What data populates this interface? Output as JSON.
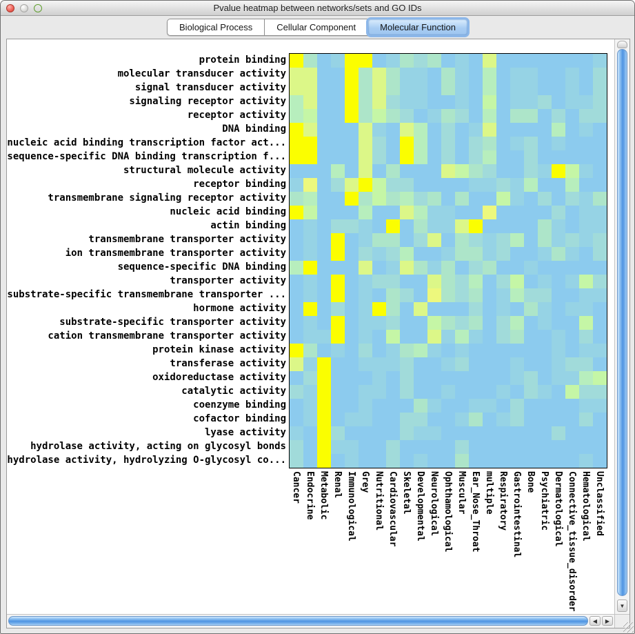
{
  "window": {
    "title": "Pvalue heatmap between networks/sets and GO IDs"
  },
  "tabs": [
    {
      "label": "Biological Process",
      "selected": false
    },
    {
      "label": "Cellular Component",
      "selected": false
    },
    {
      "label": "Molecular Function",
      "selected": true
    }
  ],
  "chart_data": {
    "type": "heatmap",
    "title": "Pvalue heatmap between networks/sets and GO IDs",
    "rows": [
      "protein binding",
      "molecular transducer activity",
      "signal transducer activity",
      "signaling receptor activity",
      "receptor activity",
      "DNA binding",
      "nucleic acid binding transcription factor act...",
      "sequence-specific DNA binding transcription f...",
      "structural molecule activity",
      "receptor binding",
      "transmembrane signaling receptor activity",
      "nucleic acid binding",
      "actin binding",
      "transmembrane transporter activity",
      "ion transmembrane transporter activity",
      "sequence-specific DNA binding",
      "transporter activity",
      "substrate-specific transmembrane transporter ...",
      "hormone activity",
      "substrate-specific transporter activity",
      "cation transmembrane transporter activity",
      "protein kinase activity",
      "transferase activity",
      "oxidoreductase activity",
      "catalytic activity",
      "coenzyme binding",
      "cofactor binding",
      "lyase activity",
      "hydrolase activity, acting on glycosyl bonds",
      "hydrolase activity, hydrolyzing O-glycosyl co..."
    ],
    "columns": [
      "Cancer",
      "Endocrine",
      "Metabolic",
      "Renal",
      "Immunological",
      "Grey",
      "Nutritional",
      "Cardiovascular",
      "Skeletal",
      "Developmental",
      "Neurological",
      "Ophthamological",
      "Muscular",
      "Ear_Nose_Throat",
      "multiple",
      "Respiratory",
      "Gastrointestinal",
      "Bone",
      "Psychiatric",
      "Dermatological",
      "Connective_tissue_disorder",
      "Hematological",
      "Unclassified"
    ],
    "value_scale": {
      "description": "discrete p-value intensity level per cell; 0 = low significance (light blue) through 8 = high significance (yellow)",
      "levels": 9
    },
    "palette": [
      "#8CCBEE",
      "#96D3E5",
      "#A1DBDA",
      "#ADE5C9",
      "#B7EEBD",
      "#C5F6A6",
      "#DCF788",
      "#EDF87D",
      "#FBFE00"
    ],
    "matrix": [
      "83018801323010600000001",
      "66008363110310401100102",
      "66008363110310401100102",
      "46008362110010501120112",
      "45008353201320403302022",
      "86000610640201600004010",
      "88000620840202301201000",
      "88000620840202400200000",
      "00040603000653200218510",
      "17026852200001121400400",
      "34008353423030051020213",
      "85000400641100700002011",
      "01022108031168000031011",
      "01080133026032124031212",
      "01080212400133120013102",
      "48000601631302300100000",
      "01080122006324025010152",
      "01080103207323014220011",
      "08020183060002010310110",
      "01080112005323024010050",
      "01180105006141023001020",
      "83010201341010000001011",
      "61800111200120001001220",
      "02800010200000001201145",
      "21800110200100010210522",
      "01800100031001102000011",
      "01801100220013012000020",
      "10820000211000000002000",
      "20811002000020000000000",
      "20801002010030000000010"
    ],
    "legend_position": "none",
    "grid": false
  },
  "scrollbars": {
    "horizontal": {
      "left_arrow": "◀",
      "right_arrow": "▶"
    },
    "vertical": {
      "down_arrow": "▼"
    }
  }
}
